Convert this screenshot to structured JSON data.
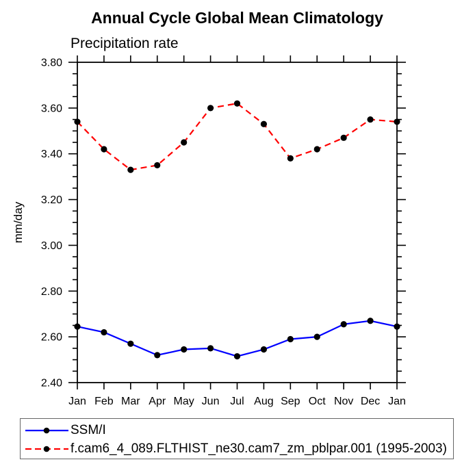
{
  "title": "Annual Cycle Global Mean Climatology",
  "subtitle": "Precipitation rate",
  "chart_data": {
    "type": "line",
    "title": "Annual Cycle Global Mean Climatology",
    "subtitle": "Precipitation rate",
    "xlabel": "",
    "ylabel": "mm/day",
    "x": [
      "Jan",
      "Feb",
      "Mar",
      "Apr",
      "May",
      "Jun",
      "Jul",
      "Aug",
      "Sep",
      "Oct",
      "Nov",
      "Dec",
      "Jan"
    ],
    "ylim": [
      2.4,
      3.8
    ],
    "ytick_step": 0.2,
    "yminor_step": 0.05,
    "ytick_decimals": 2,
    "grid": false,
    "legend_position": "bottom-left-box",
    "axis_color": "#000000",
    "marker": "filled-circle",
    "marker_color": "#000000",
    "series": [
      {
        "name": "SSM/I",
        "color": "#0000ff",
        "line_style": "solid",
        "values": [
          2.645,
          2.62,
          2.57,
          2.52,
          2.545,
          2.55,
          2.515,
          2.545,
          2.59,
          2.6,
          2.655,
          2.67,
          2.645
        ]
      },
      {
        "name": "f.cam6_4_089.FLTHIST_ne30.cam7_zm_pblpar.001 (1995-2003)",
        "color": "#ff0000",
        "line_style": "dashed",
        "values": [
          3.54,
          3.42,
          3.33,
          3.35,
          3.45,
          3.6,
          3.62,
          3.53,
          3.38,
          3.42,
          3.47,
          3.55,
          3.54
        ]
      }
    ]
  }
}
